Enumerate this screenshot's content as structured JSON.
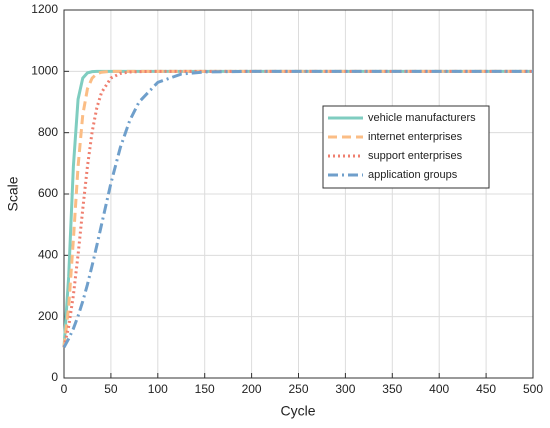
{
  "chart_data": {
    "type": "line",
    "xlabel": "Cycle",
    "ylabel": "Scale",
    "x": [
      0,
      5,
      10,
      15,
      20,
      25,
      30,
      35,
      40,
      50,
      60,
      70,
      80,
      100,
      125,
      150,
      200,
      300,
      400,
      500
    ],
    "series": [
      {
        "name": "vehicle manufacturers",
        "color": "#7fcdc0",
        "dash": "solid",
        "values": [
          100,
          332,
          690,
          909,
          978,
          995,
          999,
          1000,
          1000,
          1000,
          1000,
          1000,
          1000,
          1000,
          1000,
          1000,
          1000,
          1000,
          1000,
          1000
        ]
      },
      {
        "name": "internet enterprises",
        "color": "#fbbd85",
        "dash": "dashed",
        "values": [
          100,
          232,
          451,
          690,
          858,
          943,
          978,
          992,
          997,
          1000,
          1000,
          1000,
          1000,
          1000,
          1000,
          1000,
          1000,
          1000,
          1000,
          1000
        ]
      },
      {
        "name": "support enterprises",
        "color": "#ef7f6f",
        "dash": "dotted",
        "values": [
          100,
          168,
          270,
          402,
          551,
          690,
          803,
          881,
          931,
          978,
          993,
          998,
          999,
          1000,
          1000,
          1000,
          1000,
          1000,
          1000,
          1000
        ]
      },
      {
        "name": "application groups",
        "color": "#6f9fcb",
        "dash": "dashdot",
        "values": [
          100,
          128,
          161,
          202,
          250,
          305,
          367,
          432,
          500,
          635,
          751,
          839,
          900,
          964,
          991,
          998,
          1000,
          1000,
          1000,
          1000
        ]
      }
    ],
    "xlim": [
      0,
      500
    ],
    "xticks": [
      0,
      50,
      100,
      150,
      200,
      250,
      300,
      350,
      400,
      450,
      500
    ],
    "ylim": [
      0,
      1200
    ],
    "yticks": [
      0,
      200,
      400,
      600,
      800,
      1000,
      1200
    ],
    "grid": true,
    "legend": "east"
  }
}
